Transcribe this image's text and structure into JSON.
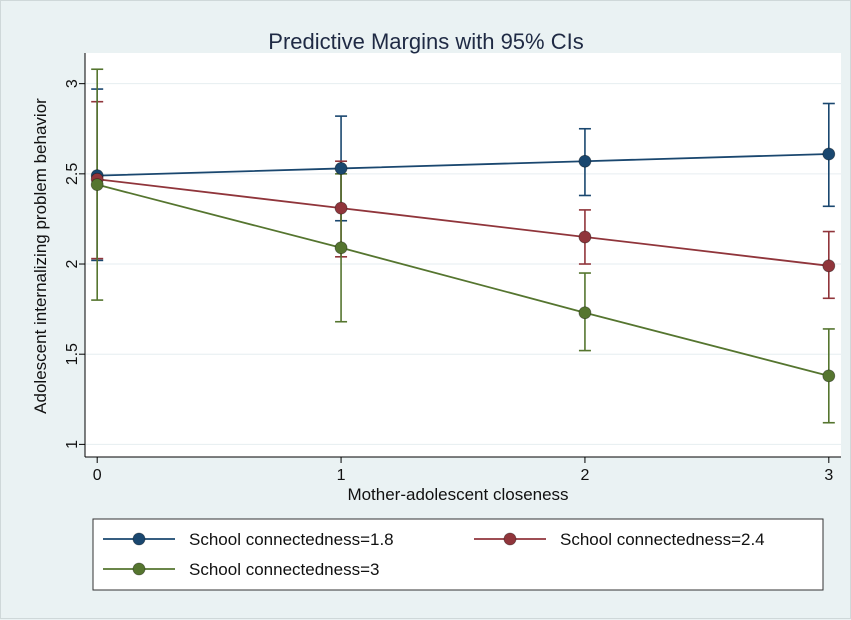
{
  "chart_data": {
    "type": "line",
    "title": "Predictive Margins with 95% CIs",
    "xlabel": "Mother-adolescent closeness",
    "ylabel": "Adolescent internalizing problem behavior",
    "x": [
      0,
      1,
      2,
      3
    ],
    "x_tick_labels": [
      "0",
      "1",
      "2",
      "3"
    ],
    "y_ticks": [
      1,
      1.5,
      2,
      2.5,
      3
    ],
    "y_tick_labels": [
      "1",
      "1.5",
      "2",
      "2.5",
      "3"
    ],
    "xlim": [
      -0.05,
      3.05
    ],
    "ylim": [
      0.93,
      3.17
    ],
    "grid": "horizontal",
    "legend_position": "bottom",
    "series": [
      {
        "name": "School connectedness=1.8",
        "color": "#1a476f",
        "values": [
          2.49,
          2.53,
          2.57,
          2.61
        ],
        "ci_low": [
          2.02,
          2.24,
          2.38,
          2.32
        ],
        "ci_high": [
          2.97,
          2.82,
          2.75,
          2.89
        ]
      },
      {
        "name": "School connectedness=2.4",
        "color": "#90353b",
        "values": [
          2.47,
          2.31,
          2.15,
          1.99
        ],
        "ci_low": [
          2.03,
          2.04,
          2.0,
          1.81
        ],
        "ci_high": [
          2.9,
          2.57,
          2.3,
          2.18
        ]
      },
      {
        "name": "School connectedness=3",
        "color": "#55752f",
        "values": [
          2.44,
          2.09,
          1.73,
          1.38
        ],
        "ci_low": [
          1.8,
          1.68,
          1.52,
          1.12
        ],
        "ci_high": [
          3.08,
          2.5,
          1.95,
          1.64
        ]
      }
    ]
  }
}
